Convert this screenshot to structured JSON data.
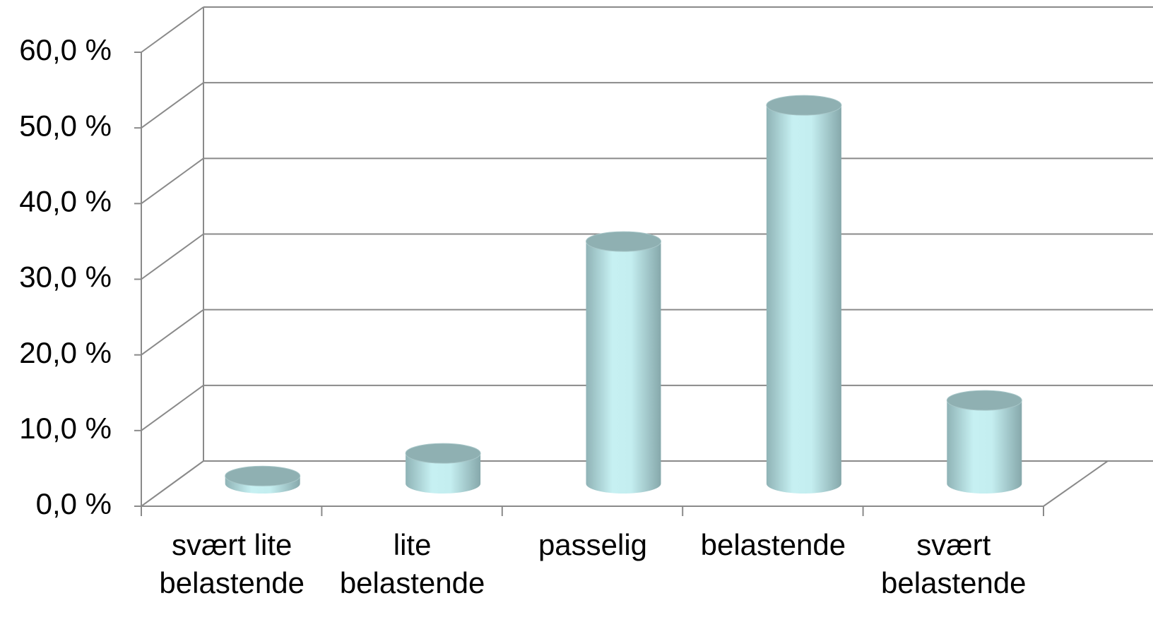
{
  "chart_data": {
    "type": "cylinder",
    "categories": [
      "svært lite\nbelastende",
      "lite\nbelastende",
      "passelig",
      "belastende",
      "svært\nbelastende"
    ],
    "values": [
      1.0,
      4.0,
      32.0,
      50.0,
      11.0
    ],
    "color": "#c4eef0",
    "ylim": [
      0,
      60
    ],
    "yticks": [
      {
        "value": 0,
        "label": "0,0 %"
      },
      {
        "value": 10,
        "label": "10,0 %"
      },
      {
        "value": 20,
        "label": "20,0 %"
      },
      {
        "value": 30,
        "label": "30,0 %"
      },
      {
        "value": 40,
        "label": "40,0 %"
      },
      {
        "value": 50,
        "label": "50,0 %"
      },
      {
        "value": 60,
        "label": "60,0 %"
      }
    ],
    "grid": true
  }
}
